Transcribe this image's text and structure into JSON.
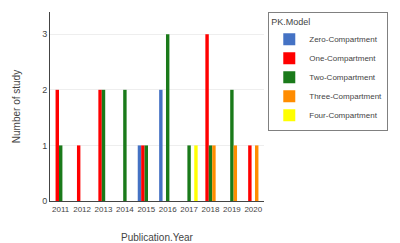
{
  "chart_data": {
    "type": "bar",
    "categories": [
      "2011",
      "2012",
      "2013",
      "2014",
      "2015",
      "2016",
      "2017",
      "2018",
      "2019",
      "2020"
    ],
    "series": [
      {
        "name": "Zero-Compartment",
        "color": "#4472c4",
        "values": [
          0,
          0,
          0,
          0,
          1,
          2,
          0,
          0,
          0,
          0
        ]
      },
      {
        "name": "One-Compartment",
        "color": "#ff0000",
        "values": [
          2,
          1,
          2,
          0,
          1,
          0,
          0,
          3,
          0,
          1
        ]
      },
      {
        "name": "Two-Compartment",
        "color": "#1a7a1a",
        "values": [
          1,
          0,
          2,
          2,
          1,
          3,
          1,
          1,
          2,
          0
        ]
      },
      {
        "name": "Three-Compartment",
        "color": "#ff8c00",
        "values": [
          0,
          0,
          0,
          0,
          0,
          0,
          0,
          1,
          1,
          1
        ]
      },
      {
        "name": "Four-Compartment",
        "color": "#ffff00",
        "values": [
          0,
          0,
          0,
          0,
          0,
          0,
          1,
          0,
          0,
          0
        ]
      }
    ],
    "legend_title": "PK.Model",
    "legend": "upper right",
    "xlabel": "Publication.Year",
    "ylabel": "Number of study",
    "ylim": [
      0,
      3.4
    ],
    "yticks": [
      0,
      1,
      2,
      3
    ],
    "grid": true
  }
}
